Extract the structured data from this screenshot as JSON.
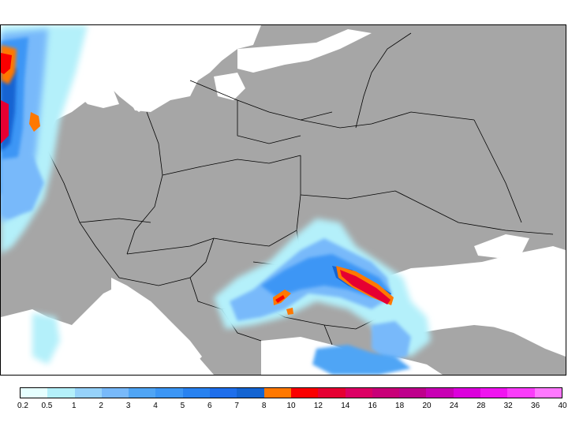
{
  "map": {
    "land_color": "#a6a6a6",
    "water_color": "#ffffff",
    "border_color": "#000000"
  },
  "legend": {
    "colors": [
      "#e6ffff",
      "#b4f0fa",
      "#96d2fa",
      "#78b9fa",
      "#50a5f5",
      "#3c96f5",
      "#2882f0",
      "#1e6eeb",
      "#1464d2",
      "#ff7800",
      "#fa0000",
      "#e60032",
      "#dc0064",
      "#c80078",
      "#be008c",
      "#c800b4",
      "#dc00dc",
      "#f014f0",
      "#fa3cfa",
      "#ff78ff"
    ],
    "labels": [
      "0.2",
      "0.5",
      "1",
      "2",
      "3",
      "4",
      "5",
      "6",
      "7",
      "8",
      "10",
      "12",
      "14",
      "16",
      "18",
      "20",
      "24",
      "28",
      "32",
      "36",
      "40"
    ]
  }
}
